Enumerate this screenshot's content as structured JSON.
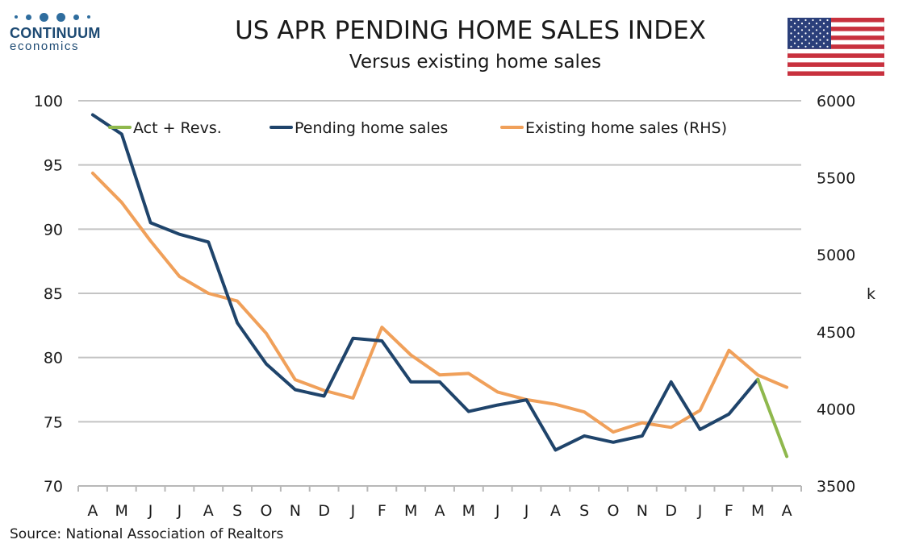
{
  "logo": {
    "name": "CONTINUUM",
    "sub": "economics",
    "color": "#1d4a73"
  },
  "title": "US APR PENDING HOME SALES INDEX",
  "subtitle": "Versus existing home sales",
  "flag": {
    "icon": "us-flag-icon"
  },
  "source": "Source: National Association of Realtors",
  "chart_data": {
    "type": "line",
    "categories": [
      "A",
      "M",
      "J",
      "J",
      "A",
      "S",
      "O",
      "N",
      "D",
      "J",
      "F",
      "M",
      "A",
      "M",
      "J",
      "J",
      "A",
      "S",
      "O",
      "N",
      "D",
      "J",
      "F",
      "M",
      "A"
    ],
    "series": [
      {
        "name": "Act + Revs.",
        "axis": "left",
        "color": "#8fb84d",
        "values": [
          null,
          null,
          null,
          null,
          null,
          null,
          null,
          null,
          null,
          null,
          null,
          null,
          null,
          null,
          null,
          null,
          null,
          null,
          null,
          null,
          null,
          null,
          null,
          78.3,
          72.3
        ]
      },
      {
        "name": "Pending home sales",
        "axis": "left",
        "color": "#1f446b",
        "values": [
          98.9,
          97.4,
          90.5,
          89.6,
          89.0,
          82.7,
          79.5,
          77.5,
          77.0,
          81.5,
          81.3,
          78.1,
          78.1,
          75.8,
          76.3,
          76.7,
          72.8,
          73.9,
          73.4,
          73.9,
          78.1,
          74.4,
          75.6,
          78.3,
          null
        ]
      },
      {
        "name": "Existing home sales (RHS)",
        "axis": "right",
        "color": "#f0a05a",
        "values": [
          5530,
          5340,
          5090,
          4860,
          4750,
          4700,
          4490,
          4190,
          4120,
          4070,
          4530,
          4350,
          4220,
          4230,
          4110,
          4060,
          4030,
          3980,
          3850,
          3910,
          3880,
          3990,
          4380,
          4220,
          4140
        ]
      }
    ],
    "yleft": {
      "min": 70,
      "max": 100,
      "ticks": [
        70,
        75,
        80,
        85,
        90,
        95,
        100
      ]
    },
    "yright": {
      "min": 3500,
      "max": 6000,
      "ticks": [
        3500,
        4000,
        4500,
        5000,
        5500,
        6000
      ],
      "unit": "k"
    },
    "grid": true,
    "legend": "top"
  }
}
